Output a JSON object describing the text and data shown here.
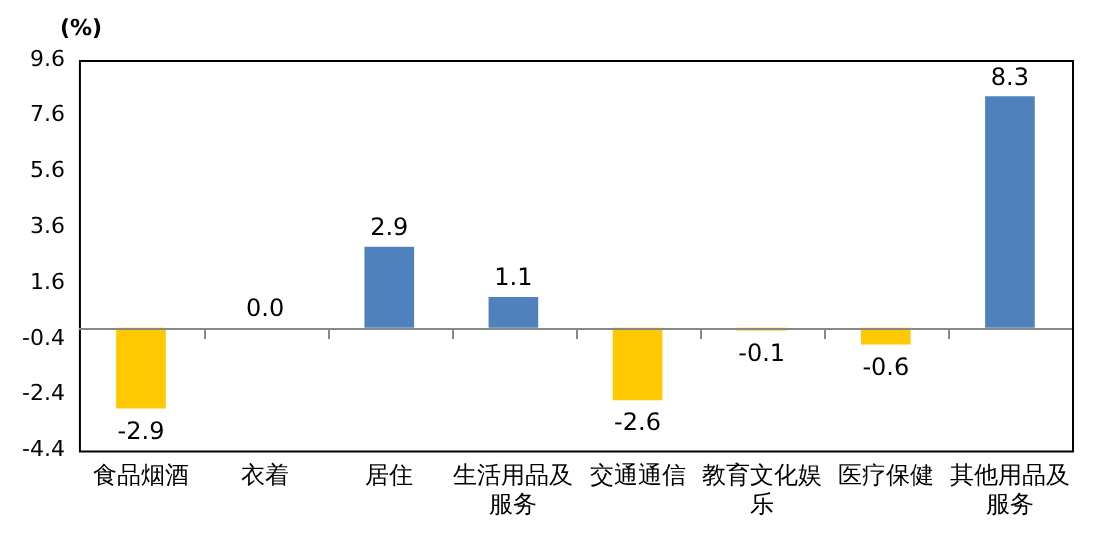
{
  "chart_data": {
    "type": "bar",
    "ylabel": "(%)",
    "categories": [
      "食品烟酒",
      "衣着",
      "居住",
      "生活用品及服务",
      "交通通信",
      "教育文化娱乐",
      "医疗保健",
      "其他用品及服务"
    ],
    "values": [
      -2.9,
      0.0,
      2.9,
      1.1,
      -2.6,
      -0.1,
      -0.6,
      8.3
    ],
    "colors": [
      "#ffc800",
      "#ffc800",
      "#4f81bd",
      "#4f81bd",
      "#ffc800",
      "#ffc800",
      "#ffc800",
      "#4f81bd"
    ],
    "value_labels": [
      "-2.9",
      "0.0",
      "2.9",
      "1.1",
      "-2.6",
      "-0.1",
      "-0.6",
      "8.3"
    ],
    "ylim": [
      -4.4,
      9.6
    ],
    "yticks": [
      -4.4,
      -2.4,
      -0.4,
      1.6,
      3.6,
      5.6,
      7.6,
      9.6
    ],
    "grid": false,
    "legend": false
  }
}
